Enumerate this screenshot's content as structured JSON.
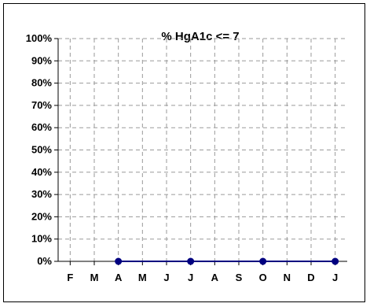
{
  "chart_data": {
    "type": "line",
    "title": "%  HgA1c <= 7",
    "xlabel": "",
    "ylabel": "",
    "categories": [
      "F",
      "M",
      "A",
      "M",
      "J",
      "J",
      "A",
      "S",
      "O",
      "N",
      "D",
      "J"
    ],
    "y_ticks": [
      "0%",
      "10%",
      "20%",
      "30%",
      "40%",
      "50%",
      "60%",
      "70%",
      "80%",
      "90%",
      "100%"
    ],
    "ylim": [
      0,
      100
    ],
    "grid": true,
    "legend": "none",
    "series": [
      {
        "points": [
          {
            "x": "A",
            "y": 0
          },
          {
            "x": "J",
            "y": 0
          },
          {
            "x": "O",
            "y": 0
          },
          {
            "x": "J",
            "y": 0
          }
        ],
        "point_indices": [
          2,
          5,
          8,
          11
        ],
        "color": "#000080"
      }
    ],
    "colors": {
      "grid": "#9a9a9a",
      "axis": "#000000",
      "marker": "#000080",
      "line": "#000080"
    }
  }
}
